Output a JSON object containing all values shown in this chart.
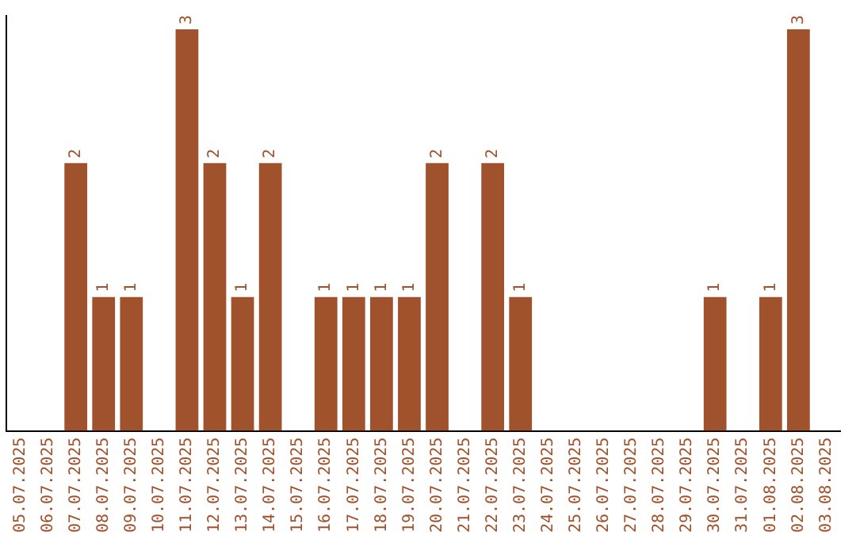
{
  "chart_data": {
    "type": "bar",
    "categories": [
      "05.07.2025",
      "06.07.2025",
      "07.07.2025",
      "08.07.2025",
      "09.07.2025",
      "10.07.2025",
      "11.07.2025",
      "12.07.2025",
      "13.07.2025",
      "14.07.2025",
      "15.07.2025",
      "16.07.2025",
      "17.07.2025",
      "18.07.2025",
      "19.07.2025",
      "20.07.2025",
      "21.07.2025",
      "22.07.2025",
      "23.07.2025",
      "24.07.2025",
      "25.07.2025",
      "26.07.2025",
      "27.07.2025",
      "28.07.2025",
      "29.07.2025",
      "30.07.2025",
      "31.07.2025",
      "01.08.2025",
      "02.08.2025",
      "03.08.2025"
    ],
    "values": [
      null,
      null,
      2,
      1,
      1,
      null,
      3,
      2,
      1,
      2,
      null,
      1,
      1,
      1,
      1,
      2,
      null,
      2,
      1,
      null,
      null,
      null,
      null,
      null,
      null,
      1,
      null,
      1,
      3,
      null
    ],
    "color": "#a0522d",
    "ylim": [
      0,
      3.1
    ],
    "data_labels": true,
    "tick_labels": "x",
    "grid": false,
    "legend": false
  }
}
